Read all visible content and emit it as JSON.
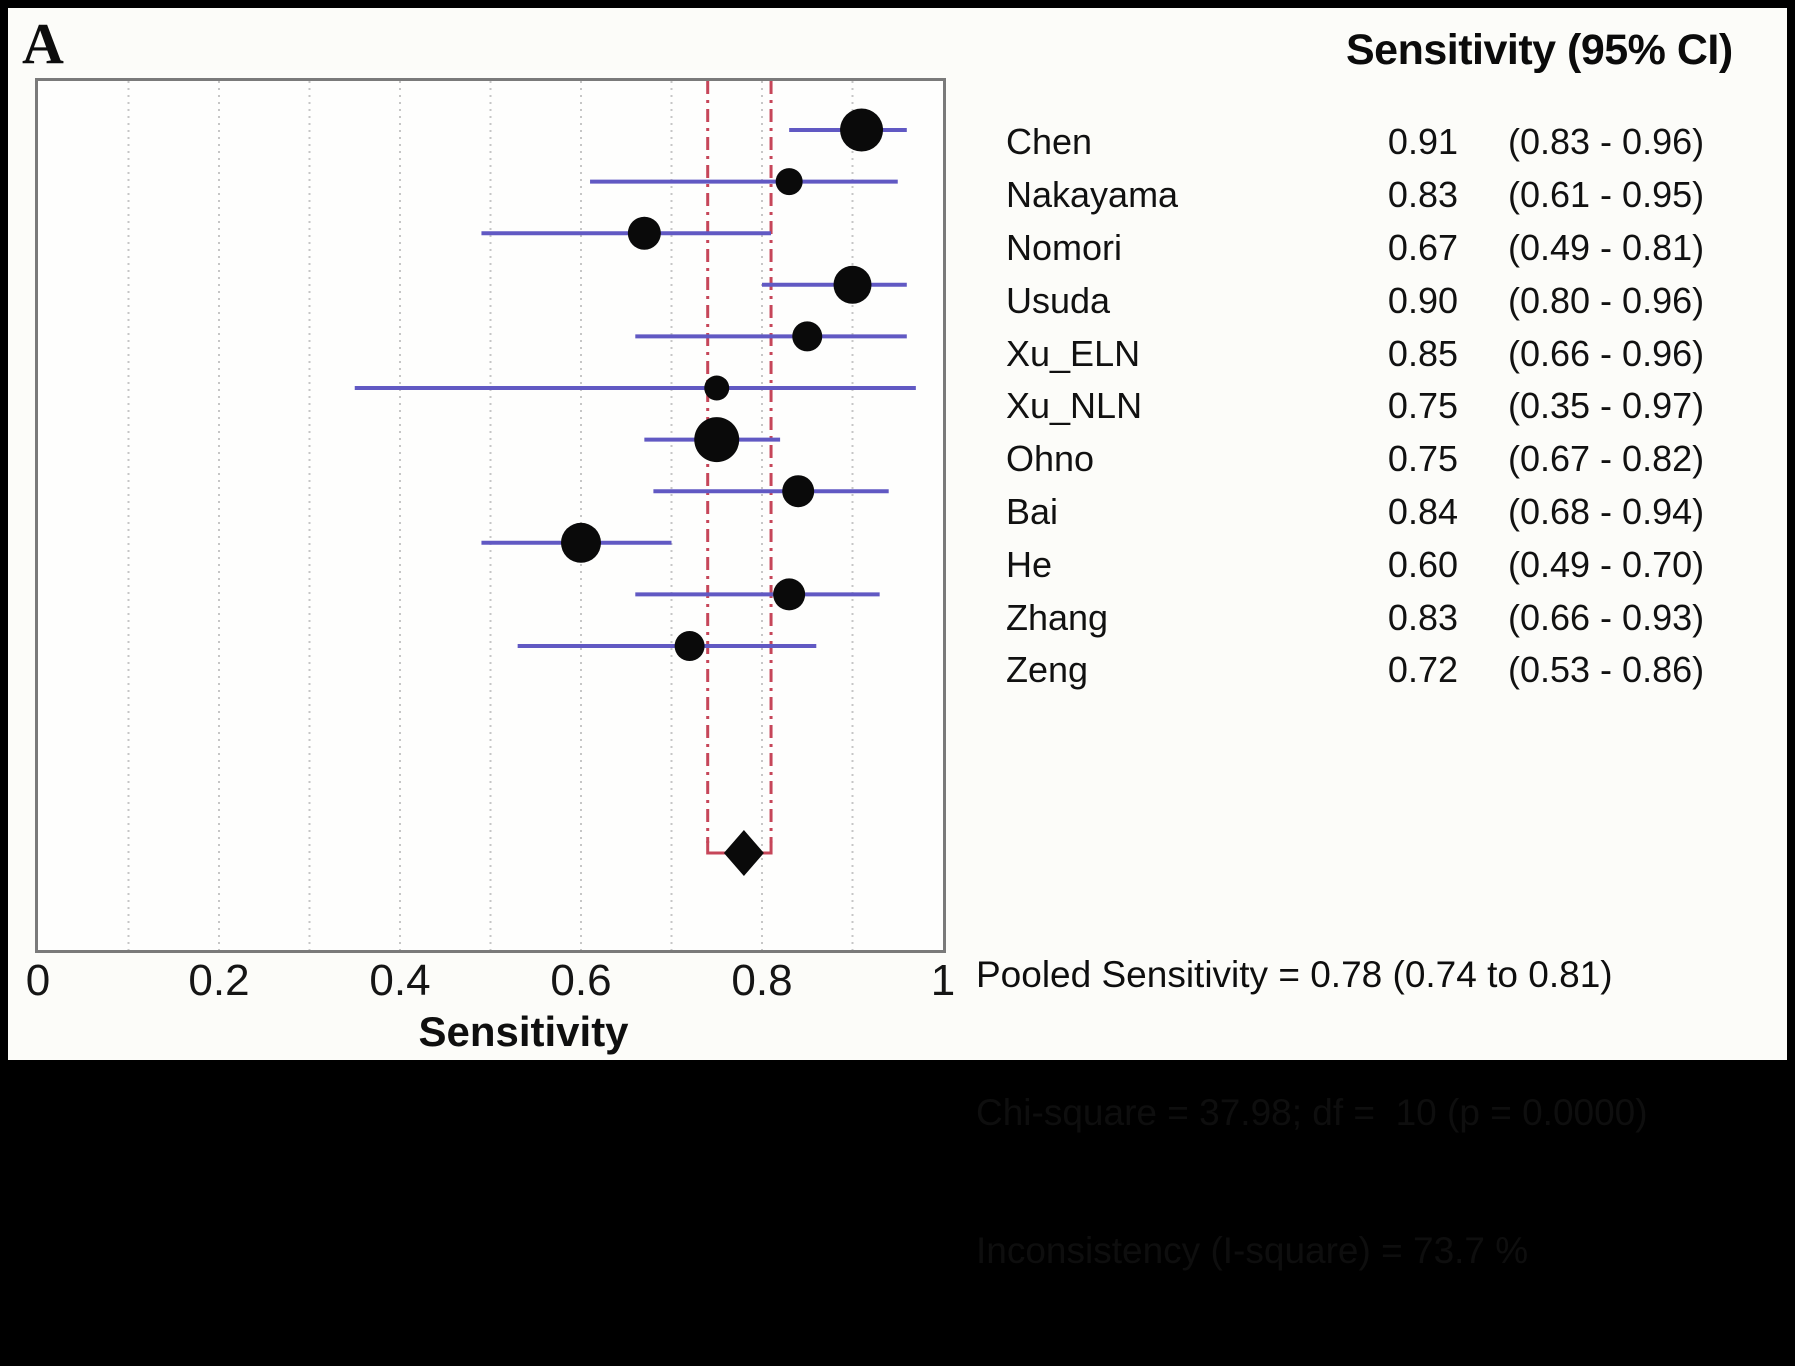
{
  "panel_label": "A",
  "colors": {
    "ci_line": "#6159c3",
    "marker": "#0a0a0a",
    "pooled_line": "#c64659",
    "grid": "#c6c6c6",
    "plot_border": "#7a7a7a",
    "diamond": "#0a0a0a",
    "frame": "#000000"
  },
  "table": {
    "header": "Sensitivity (95% CI)",
    "rows": [
      {
        "study": "Chen",
        "value": "0.91",
        "ci": "(0.83 - 0.96)"
      },
      {
        "study": "Nakayama",
        "value": "0.83",
        "ci": "(0.61 - 0.95)"
      },
      {
        "study": "Nomori",
        "value": "0.67",
        "ci": "(0.49 - 0.81)"
      },
      {
        "study": "Usuda",
        "value": "0.90",
        "ci": "(0.80 - 0.96)"
      },
      {
        "study": "Xu_ELN",
        "value": "0.85",
        "ci": "(0.66 - 0.96)"
      },
      {
        "study": "Xu_NLN",
        "value": "0.75",
        "ci": "(0.35 - 0.97)"
      },
      {
        "study": "Ohno",
        "value": "0.75",
        "ci": "(0.67 - 0.82)"
      },
      {
        "study": "Bai",
        "value": "0.84",
        "ci": "(0.68 - 0.94)"
      },
      {
        "study": "He",
        "value": "0.60",
        "ci": "(0.49 - 0.70)"
      },
      {
        "study": "Zhang",
        "value": "0.83",
        "ci": "(0.66 - 0.93)"
      },
      {
        "study": "Zeng",
        "value": "0.72",
        "ci": "(0.53 - 0.86)"
      }
    ]
  },
  "summary": {
    "line1": "Pooled Sensitivity = 0.78 (0.74 to 0.81)",
    "line2": "Chi-square = 37.98; df =  10 (p = 0.0000)",
    "line3": "Inconsistency (I-square) = 73.7 %"
  },
  "chart_data": {
    "type": "forest",
    "title": "",
    "xlabel": "Sensitivity",
    "xlim": [
      0,
      1
    ],
    "xticks": [
      0,
      0.2,
      0.4,
      0.6,
      0.8,
      1
    ],
    "xtick_labels": [
      "0",
      "0.2",
      "0.4",
      "0.6",
      "0.8",
      "1"
    ],
    "gridlines": [
      0.1,
      0.2,
      0.3,
      0.4,
      0.5,
      0.6,
      0.7,
      0.8,
      0.9
    ],
    "grid_style": "dotted",
    "studies": [
      {
        "name": "Chen",
        "sensitivity": 0.91,
        "ci_low": 0.83,
        "ci_high": 0.96,
        "marker_size": 43
      },
      {
        "name": "Nakayama",
        "sensitivity": 0.83,
        "ci_low": 0.61,
        "ci_high": 0.95,
        "marker_size": 27
      },
      {
        "name": "Nomori",
        "sensitivity": 0.67,
        "ci_low": 0.49,
        "ci_high": 0.81,
        "marker_size": 33
      },
      {
        "name": "Usuda",
        "sensitivity": 0.9,
        "ci_low": 0.8,
        "ci_high": 0.96,
        "marker_size": 38
      },
      {
        "name": "Xu_ELN",
        "sensitivity": 0.85,
        "ci_low": 0.66,
        "ci_high": 0.96,
        "marker_size": 30
      },
      {
        "name": "Xu_NLN",
        "sensitivity": 0.75,
        "ci_low": 0.35,
        "ci_high": 0.97,
        "marker_size": 25
      },
      {
        "name": "Ohno",
        "sensitivity": 0.75,
        "ci_low": 0.67,
        "ci_high": 0.82,
        "marker_size": 45
      },
      {
        "name": "Bai",
        "sensitivity": 0.84,
        "ci_low": 0.68,
        "ci_high": 0.94,
        "marker_size": 32
      },
      {
        "name": "He",
        "sensitivity": 0.6,
        "ci_low": 0.49,
        "ci_high": 0.7,
        "marker_size": 40
      },
      {
        "name": "Zhang",
        "sensitivity": 0.83,
        "ci_low": 0.66,
        "ci_high": 0.93,
        "marker_size": 32
      },
      {
        "name": "Zeng",
        "sensitivity": 0.72,
        "ci_low": 0.53,
        "ci_high": 0.86,
        "marker_size": 30
      }
    ],
    "pooled": {
      "estimate": 0.78,
      "ci_low": 0.74,
      "ci_high": 0.81
    }
  }
}
